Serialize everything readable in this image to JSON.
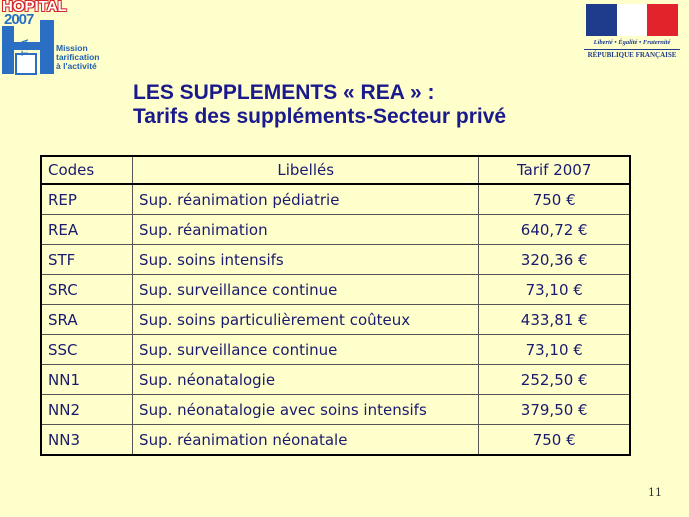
{
  "logo": {
    "line1": "HOPITAL",
    "line2": "2007",
    "badge": "T2A",
    "mission_lines": [
      "Mission",
      "tarification",
      "à l'activité"
    ]
  },
  "republic": {
    "motto": "Liberté • Égalité • Fraternité",
    "name": "RÉPUBLIQUE FRANÇAISE"
  },
  "title": {
    "line1": "LES SUPPLEMENTS « REA » :",
    "line2": "Tarifs des suppléments-Secteur privé"
  },
  "table": {
    "headers": [
      "Codes",
      "Libellés",
      "Tarif 2007"
    ],
    "rows": [
      {
        "code": "REP",
        "label": "Sup. réanimation pédiatrie",
        "tarif": "750 €"
      },
      {
        "code": "REA",
        "label": "Sup. réanimation",
        "tarif": "640,72 €"
      },
      {
        "code": "STF",
        "label": "Sup. soins intensifs",
        "tarif": "320,36 €"
      },
      {
        "code": "SRC",
        "label": "Sup. surveillance continue",
        "tarif": "73,10 €"
      },
      {
        "code": "SRA",
        "label": "Sup. soins particulièrement coûteux",
        "tarif": "433,81 €"
      },
      {
        "code": "SSC",
        "label": "Sup. surveillance continue",
        "tarif": "73,10 €"
      },
      {
        "code": "NN1",
        "label": "Sup. néonatalogie",
        "tarif": "252,50 €"
      },
      {
        "code": "NN2",
        "label": "Sup. néonatalogie avec soins intensifs",
        "tarif": "379,50 €"
      },
      {
        "code": "NN3",
        "label": "Sup. réanimation néonatale",
        "tarif": "750 €"
      }
    ]
  },
  "page_number": "11",
  "colors": {
    "background": "#ffffcc",
    "title": "#1a1a8c",
    "text": "#1a1a6e"
  }
}
